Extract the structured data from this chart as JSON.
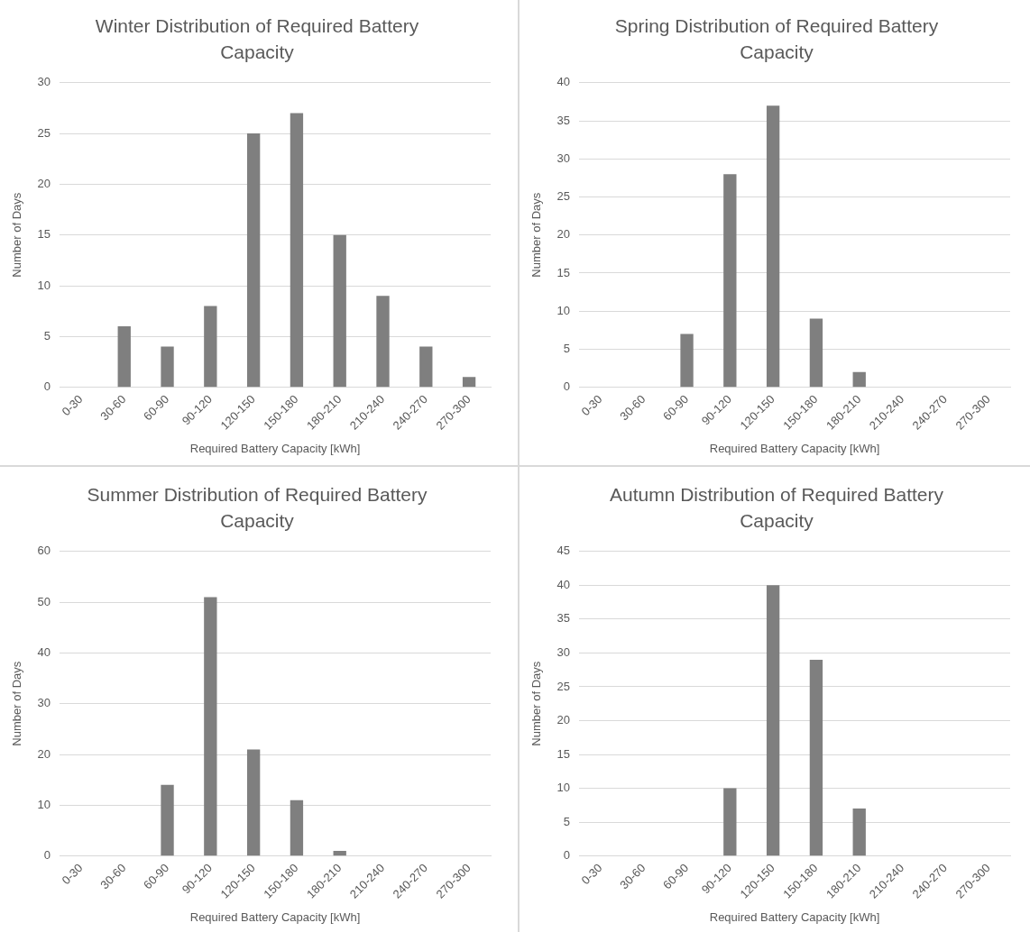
{
  "chart_data": [
    {
      "type": "bar",
      "title": "Winter Distribution of Required Battery Capacity",
      "xlabel": "Required Battery Capacity [kWh]",
      "ylabel": "Number of Days",
      "categories": [
        "0-30",
        "30-60",
        "60-90",
        "90-120",
        "120-150",
        "150-180",
        "180-210",
        "210-240",
        "240-270",
        "270-300"
      ],
      "values": [
        0,
        6,
        4,
        8,
        25,
        27,
        15,
        9,
        4,
        1
      ],
      "color": "#7f7f7f",
      "ylim": [
        0,
        30
      ],
      "yticks": [
        0,
        5,
        10,
        15,
        20,
        25,
        30
      ],
      "grid": "y",
      "legend": false
    },
    {
      "type": "bar",
      "title": "Spring Distribution of Required Battery Capacity",
      "xlabel": "Required Battery Capacity [kWh]",
      "ylabel": "Number of Days",
      "categories": [
        "0-30",
        "30-60",
        "60-90",
        "90-120",
        "120-150",
        "150-180",
        "180-210",
        "210-240",
        "240-270",
        "270-300"
      ],
      "values": [
        0,
        0,
        7,
        28,
        37,
        9,
        2,
        0,
        0,
        0
      ],
      "color": "#7f7f7f",
      "ylim": [
        0,
        40
      ],
      "yticks": [
        0,
        5,
        10,
        15,
        20,
        25,
        30,
        35,
        40
      ],
      "grid": "y",
      "legend": false
    },
    {
      "type": "bar",
      "title": "Summer Distribution of Required Battery Capacity",
      "xlabel": "Required Battery Capacity [kWh]",
      "ylabel": "Number of Days",
      "categories": [
        "0-30",
        "30-60",
        "60-90",
        "90-120",
        "120-150",
        "150-180",
        "180-210",
        "210-240",
        "240-270",
        "270-300"
      ],
      "values": [
        0,
        0,
        14,
        51,
        21,
        11,
        1,
        0,
        0,
        0
      ],
      "color": "#7f7f7f",
      "ylim": [
        0,
        60
      ],
      "yticks": [
        0,
        10,
        20,
        30,
        40,
        50,
        60
      ],
      "grid": "y",
      "legend": false
    },
    {
      "type": "bar",
      "title": "Autumn Distribution of Required Battery Capacity",
      "xlabel": "Required Battery Capacity [kWh]",
      "ylabel": "Number of Days",
      "categories": [
        "0-30",
        "30-60",
        "60-90",
        "90-120",
        "120-150",
        "150-180",
        "180-210",
        "210-240",
        "240-270",
        "270-300"
      ],
      "values": [
        0,
        0,
        0,
        10,
        40,
        29,
        7,
        0,
        0,
        0
      ],
      "color": "#7f7f7f",
      "ylim": [
        0,
        45
      ],
      "yticks": [
        0,
        5,
        10,
        15,
        20,
        25,
        30,
        35,
        40,
        45
      ],
      "grid": "y",
      "legend": false
    }
  ]
}
